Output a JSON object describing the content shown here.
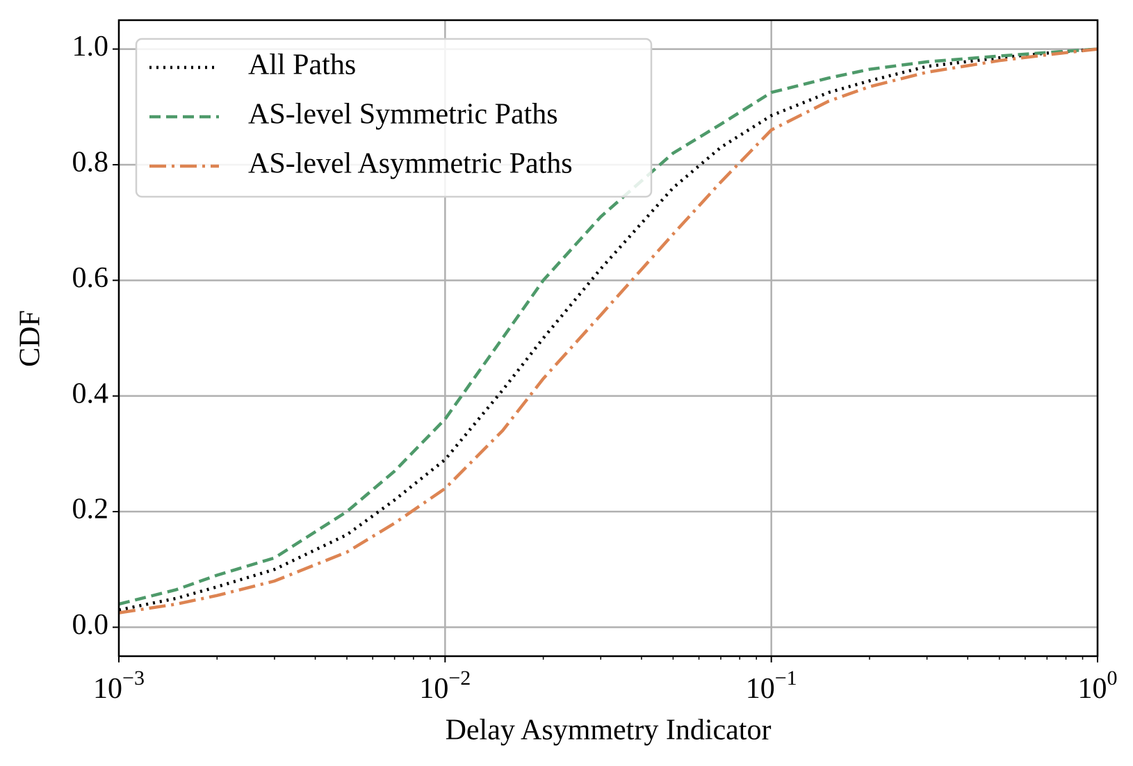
{
  "chart_data": {
    "type": "line",
    "xlabel": "Delay Asymmetry Indicator",
    "ylabel": "CDF",
    "x": [
      0.001,
      0.0015,
      0.002,
      0.003,
      0.005,
      0.007,
      0.01,
      0.015,
      0.02,
      0.03,
      0.05,
      0.07,
      0.1,
      0.15,
      0.2,
      0.3,
      0.5,
      0.7,
      1
    ],
    "series": [
      {
        "name": "All Paths",
        "color": "#000000",
        "style": "dotted",
        "values": [
          0.03,
          0.05,
          0.07,
          0.1,
          0.16,
          0.22,
          0.29,
          0.41,
          0.5,
          0.62,
          0.76,
          0.83,
          0.885,
          0.925,
          0.945,
          0.97,
          0.985,
          0.993,
          1.0
        ]
      },
      {
        "name": "AS-level Symmetric Paths",
        "color": "#4e9a6a",
        "style": "dashed",
        "values": [
          0.04,
          0.065,
          0.09,
          0.12,
          0.2,
          0.27,
          0.36,
          0.5,
          0.6,
          0.71,
          0.82,
          0.87,
          0.925,
          0.95,
          0.965,
          0.978,
          0.988,
          0.994,
          1.0
        ]
      },
      {
        "name": "AS-level Asymmetric Paths",
        "color": "#dd8452",
        "style": "dashdot",
        "values": [
          0.025,
          0.04,
          0.055,
          0.08,
          0.13,
          0.18,
          0.24,
          0.34,
          0.43,
          0.54,
          0.68,
          0.77,
          0.86,
          0.91,
          0.935,
          0.96,
          0.98,
          0.99,
          1.0
        ]
      }
    ],
    "xscale": "log",
    "xlim": [
      0.001,
      1
    ],
    "xticks": [
      {
        "value": 0.001,
        "label": "10",
        "exponent": "−3"
      },
      {
        "value": 0.01,
        "label": "10",
        "exponent": "−2"
      },
      {
        "value": 0.1,
        "label": "10",
        "exponent": "−1"
      },
      {
        "value": 1,
        "label": "10",
        "exponent": "0"
      }
    ],
    "xminorticks": [
      0.002,
      0.003,
      0.004,
      0.005,
      0.006,
      0.007,
      0.008,
      0.009,
      0.02,
      0.03,
      0.04,
      0.05,
      0.06,
      0.07,
      0.08,
      0.09,
      0.2,
      0.3,
      0.4,
      0.5,
      0.6,
      0.7,
      0.8,
      0.9
    ],
    "ylim": [
      -0.05,
      1.05
    ],
    "yticks": [
      {
        "value": 0,
        "label": "0.0"
      },
      {
        "value": 0.2,
        "label": "0.2"
      },
      {
        "value": 0.4,
        "label": "0.4"
      },
      {
        "value": 0.6,
        "label": "0.6"
      },
      {
        "value": 0.8,
        "label": "0.8"
      },
      {
        "value": 1,
        "label": "1.0"
      }
    ],
    "grid": true,
    "legend": "upper left"
  }
}
